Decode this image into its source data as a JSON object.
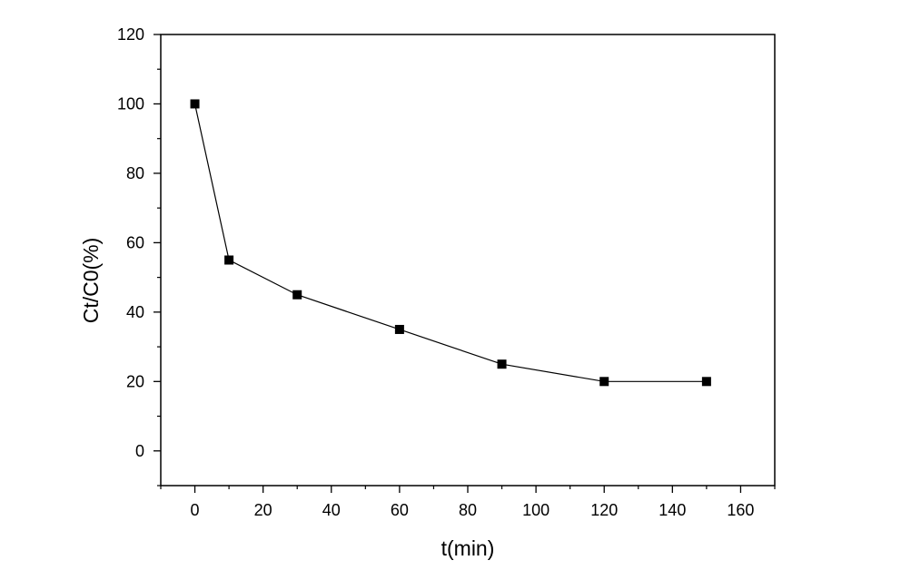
{
  "chart_data": {
    "type": "line",
    "title": "",
    "xlabel": "t(min)",
    "ylabel": "Ct/C0(%)",
    "x": [
      0,
      10,
      30,
      60,
      90,
      120,
      150
    ],
    "series": [
      {
        "values": [
          100,
          55,
          45,
          35,
          25,
          20,
          20
        ],
        "marker": "square",
        "color": "#000000"
      }
    ],
    "xlim": [
      -10,
      170
    ],
    "ylim": [
      -10,
      120
    ],
    "xticks": [
      0,
      20,
      40,
      60,
      80,
      100,
      120,
      140,
      160
    ],
    "yticks": [
      0,
      20,
      40,
      60,
      80,
      100,
      120
    ],
    "xtick_labels": [
      "0",
      "20",
      "40",
      "60",
      "80",
      "100",
      "120",
      "140",
      "160"
    ],
    "ytick_labels": [
      "0",
      "20",
      "40",
      "60",
      "80",
      "100",
      "120"
    ],
    "grid": false,
    "legend": false
  }
}
